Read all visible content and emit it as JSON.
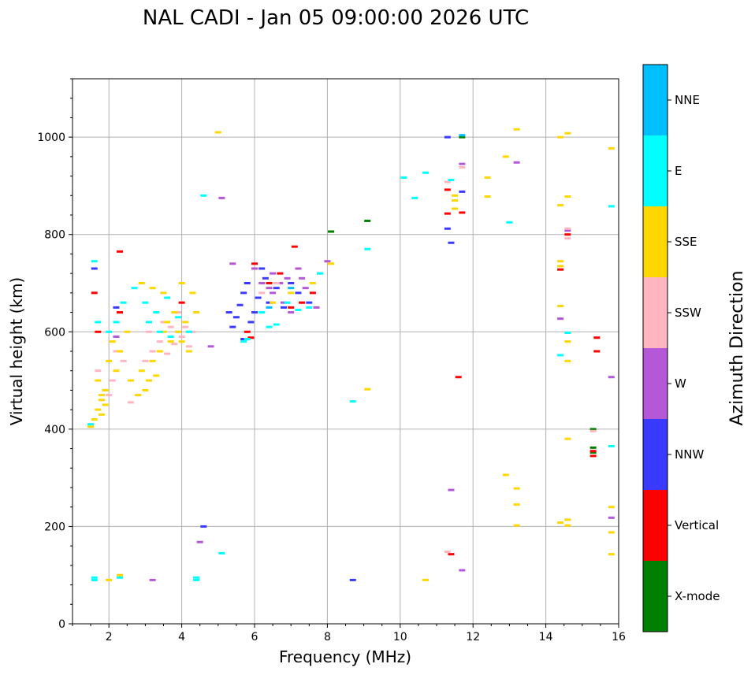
{
  "chart_data": {
    "type": "scatter",
    "title": "NAL CADI - Jan 05 09:00:00 2026 UTC",
    "xlabel": "Frequency (MHz)",
    "ylabel": "Virtual height (km)",
    "xlim": [
      1,
      16
    ],
    "ylim": [
      0,
      1120
    ],
    "xticks": [
      2,
      4,
      6,
      8,
      10,
      12,
      14,
      16
    ],
    "yticks": [
      0,
      200,
      400,
      600,
      800,
      1000
    ],
    "grid": true,
    "colorbar": {
      "title": "Azimuth Direction",
      "categories": [
        {
          "name": "X-mode",
          "color": "#008000"
        },
        {
          "name": "Vertical",
          "color": "#ff0000"
        },
        {
          "name": "NNW",
          "color": "#3a3aff"
        },
        {
          "name": "W",
          "color": "#b558d8"
        },
        {
          "name": "SSW",
          "color": "#ffb6c1"
        },
        {
          "name": "SSE",
          "color": "#ffd700"
        },
        {
          "name": "E",
          "color": "#00ffff"
        },
        {
          "name": "NNE",
          "color": "#00bfff"
        }
      ]
    },
    "series": [
      {
        "name": "X-mode",
        "points": [
          [
            8.1,
            806
          ],
          [
            9.1,
            828
          ],
          [
            15.3,
            400
          ],
          [
            15.3,
            362
          ],
          [
            15.3,
            352
          ],
          [
            11.7,
            1000
          ]
        ]
      },
      {
        "name": "Vertical",
        "points": [
          [
            1.6,
            680
          ],
          [
            1.7,
            600
          ],
          [
            2.3,
            765
          ],
          [
            2.3,
            640
          ],
          [
            4.0,
            660
          ],
          [
            5.8,
            600
          ],
          [
            5.9,
            588
          ],
          [
            6.0,
            740
          ],
          [
            6.4,
            700
          ],
          [
            6.7,
            720
          ],
          [
            7.0,
            650
          ],
          [
            7.3,
            660
          ],
          [
            7.6,
            680
          ],
          [
            7.1,
            775
          ],
          [
            11.3,
            892
          ],
          [
            11.3,
            843
          ],
          [
            11.4,
            143
          ],
          [
            11.6,
            507
          ],
          [
            11.7,
            845
          ],
          [
            14.4,
            728
          ],
          [
            14.6,
            800
          ],
          [
            15.3,
            355
          ],
          [
            15.3,
            345
          ],
          [
            15.4,
            588
          ],
          [
            15.4,
            560
          ]
        ]
      },
      {
        "name": "NNW",
        "points": [
          [
            1.6,
            730
          ],
          [
            2.2,
            650
          ],
          [
            4.6,
            200
          ],
          [
            5.3,
            640
          ],
          [
            5.5,
            630
          ],
          [
            5.6,
            655
          ],
          [
            5.7,
            680
          ],
          [
            5.8,
            700
          ],
          [
            5.9,
            620
          ],
          [
            6.0,
            640
          ],
          [
            6.1,
            670
          ],
          [
            6.3,
            710
          ],
          [
            6.4,
            660
          ],
          [
            6.6,
            690
          ],
          [
            6.8,
            650
          ],
          [
            7.0,
            700
          ],
          [
            7.2,
            680
          ],
          [
            7.5,
            660
          ],
          [
            5.4,
            610
          ],
          [
            5.7,
            585
          ],
          [
            6.2,
            730
          ],
          [
            8.7,
            90
          ],
          [
            11.3,
            812
          ],
          [
            11.4,
            783
          ],
          [
            11.7,
            888
          ],
          [
            11.3,
            1000
          ]
        ]
      },
      {
        "name": "W",
        "points": [
          [
            2.2,
            590
          ],
          [
            3.2,
            90
          ],
          [
            4.5,
            168
          ],
          [
            4.8,
            570
          ],
          [
            5.1,
            875
          ],
          [
            5.4,
            740
          ],
          [
            6.0,
            730
          ],
          [
            6.2,
            700
          ],
          [
            6.4,
            690
          ],
          [
            6.5,
            720
          ],
          [
            6.7,
            700
          ],
          [
            6.8,
            660
          ],
          [
            7.0,
            640
          ],
          [
            7.2,
            730
          ],
          [
            7.4,
            690
          ],
          [
            7.7,
            650
          ],
          [
            7.8,
            720
          ],
          [
            8.0,
            745
          ],
          [
            6.5,
            680
          ],
          [
            6.9,
            710
          ],
          [
            7.3,
            710
          ],
          [
            11.4,
            275
          ],
          [
            11.7,
            945
          ],
          [
            11.7,
            110
          ],
          [
            13.2,
            948
          ],
          [
            14.4,
            627
          ],
          [
            14.6,
            808
          ],
          [
            15.8,
            507
          ],
          [
            15.8,
            218
          ]
        ]
      },
      {
        "name": "SSW",
        "points": [
          [
            1.7,
            520
          ],
          [
            1.9,
            480
          ],
          [
            2.0,
            470
          ],
          [
            2.1,
            500
          ],
          [
            2.2,
            560
          ],
          [
            2.4,
            540
          ],
          [
            3.0,
            540
          ],
          [
            3.2,
            560
          ],
          [
            3.4,
            580
          ],
          [
            3.6,
            555
          ],
          [
            3.8,
            575
          ],
          [
            4.0,
            590
          ],
          [
            4.1,
            610
          ],
          [
            4.3,
            600
          ],
          [
            3.5,
            620
          ],
          [
            3.9,
            640
          ],
          [
            4.2,
            570
          ],
          [
            6.2,
            680
          ],
          [
            6.6,
            700
          ],
          [
            11.3,
            908
          ],
          [
            11.3,
            148
          ],
          [
            11.7,
            938
          ],
          [
            14.6,
            812
          ],
          [
            14.6,
            792
          ],
          [
            15.3,
            396
          ],
          [
            2.6,
            455
          ],
          [
            2.8,
            470
          ],
          [
            3.1,
            600
          ],
          [
            3.7,
            610
          ]
        ]
      },
      {
        "name": "SSE",
        "points": [
          [
            1.5,
            405
          ],
          [
            1.6,
            420
          ],
          [
            1.7,
            440
          ],
          [
            1.8,
            460
          ],
          [
            1.9,
            480
          ],
          [
            1.7,
            500
          ],
          [
            1.8,
            430
          ],
          [
            2.0,
            540
          ],
          [
            2.1,
            580
          ],
          [
            2.2,
            520
          ],
          [
            2.3,
            560
          ],
          [
            2.5,
            600
          ],
          [
            2.6,
            500
          ],
          [
            2.8,
            470
          ],
          [
            2.9,
            520
          ],
          [
            3.0,
            480
          ],
          [
            3.1,
            500
          ],
          [
            3.2,
            540
          ],
          [
            3.3,
            510
          ],
          [
            3.4,
            560
          ],
          [
            3.5,
            600
          ],
          [
            3.6,
            620
          ],
          [
            3.7,
            580
          ],
          [
            3.8,
            640
          ],
          [
            3.9,
            600
          ],
          [
            4.0,
            580
          ],
          [
            4.1,
            620
          ],
          [
            4.2,
            560
          ],
          [
            4.3,
            680
          ],
          [
            2.9,
            700
          ],
          [
            3.2,
            690
          ],
          [
            3.5,
            680
          ],
          [
            4.0,
            700
          ],
          [
            4.4,
            640
          ],
          [
            1.8,
            470
          ],
          [
            1.9,
            450
          ],
          [
            2.0,
            90
          ],
          [
            2.3,
            100
          ],
          [
            5.0,
            1010
          ],
          [
            6.5,
            660
          ],
          [
            7.0,
            680
          ],
          [
            7.6,
            700
          ],
          [
            8.1,
            740
          ],
          [
            9.1,
            482
          ],
          [
            10.7,
            90
          ],
          [
            11.5,
            880
          ],
          [
            11.5,
            870
          ],
          [
            11.5,
            853
          ],
          [
            12.4,
            917
          ],
          [
            12.4,
            878
          ],
          [
            12.9,
            960
          ],
          [
            13.2,
            1016
          ],
          [
            12.9,
            306
          ],
          [
            13.2,
            278
          ],
          [
            13.2,
            245
          ],
          [
            13.2,
            202
          ],
          [
            14.4,
            1000
          ],
          [
            14.6,
            1008
          ],
          [
            14.6,
            878
          ],
          [
            14.4,
            860
          ],
          [
            14.4,
            745
          ],
          [
            14.4,
            735
          ],
          [
            14.4,
            653
          ],
          [
            14.6,
            580
          ],
          [
            14.6,
            540
          ],
          [
            14.6,
            380
          ],
          [
            14.4,
            208
          ],
          [
            14.6,
            214
          ],
          [
            14.6,
            202
          ],
          [
            15.8,
            977
          ],
          [
            15.8,
            240
          ],
          [
            15.8,
            188
          ],
          [
            15.8,
            143
          ]
        ]
      },
      {
        "name": "E",
        "points": [
          [
            1.5,
            410
          ],
          [
            1.6,
            95
          ],
          [
            1.6,
            90
          ],
          [
            2.3,
            95
          ],
          [
            1.6,
            745
          ],
          [
            1.7,
            620
          ],
          [
            2.0,
            600
          ],
          [
            2.2,
            620
          ],
          [
            2.4,
            660
          ],
          [
            3.0,
            660
          ],
          [
            3.3,
            640
          ],
          [
            3.6,
            670
          ],
          [
            3.9,
            630
          ],
          [
            4.2,
            600
          ],
          [
            2.7,
            690
          ],
          [
            3.1,
            620
          ],
          [
            3.4,
            600
          ],
          [
            3.7,
            590
          ],
          [
            4.4,
            95
          ],
          [
            4.4,
            90
          ],
          [
            4.6,
            880
          ],
          [
            5.1,
            145
          ],
          [
            5.7,
            580
          ],
          [
            5.8,
            585
          ],
          [
            6.2,
            640
          ],
          [
            6.4,
            610
          ],
          [
            6.6,
            615
          ],
          [
            6.9,
            660
          ],
          [
            7.2,
            645
          ],
          [
            7.5,
            650
          ],
          [
            7.8,
            720
          ],
          [
            8.7,
            457
          ],
          [
            9.1,
            770
          ],
          [
            10.1,
            917
          ],
          [
            10.4,
            875
          ],
          [
            10.7,
            927
          ],
          [
            11.4,
            912
          ],
          [
            13.0,
            825
          ],
          [
            14.6,
            598
          ],
          [
            14.4,
            552
          ],
          [
            15.8,
            858
          ],
          [
            15.8,
            365
          ]
        ]
      },
      {
        "name": "NNE",
        "points": [
          [
            6.4,
            650
          ],
          [
            7.0,
            690
          ],
          [
            11.7,
            1004
          ]
        ]
      }
    ]
  }
}
